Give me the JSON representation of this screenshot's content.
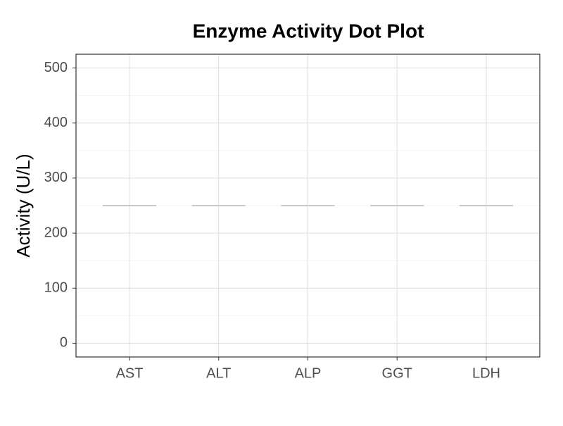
{
  "chart_data": {
    "type": "dot",
    "title": "Enzyme Activity Dot Plot",
    "y_label": "Activity (U/L)",
    "categories": [
      "AST",
      "ALT",
      "ALP",
      "GGT",
      "LDH"
    ],
    "values": [
      250,
      250,
      250,
      250,
      250
    ],
    "color": "#c8c8c8",
    "ylim": [
      -25,
      525
    ],
    "yticks": [
      0,
      100,
      200,
      300,
      400,
      500
    ],
    "grid": true
  }
}
